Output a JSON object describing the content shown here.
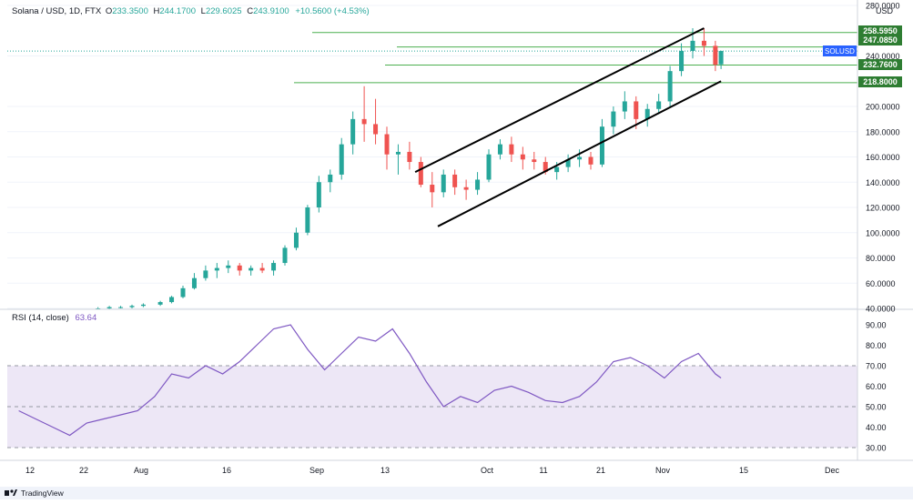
{
  "header": {
    "symbol_line": "Solana / USD, 1D, FTX",
    "ohlc": [
      {
        "label": "O",
        "value": "233.3500"
      },
      {
        "label": "H",
        "value": "244.1700"
      },
      {
        "label": "L",
        "value": "229.6025"
      },
      {
        "label": "C",
        "value": "243.9100"
      }
    ],
    "change": "+10.5600 (+4.53%)"
  },
  "price_axis": {
    "unit": "USD",
    "ticks": [
      "280.0000",
      "240.0000",
      "200.0000",
      "180.0000",
      "160.0000",
      "140.0000",
      "120.0000",
      "100.0000",
      "80.0000",
      "60.0000",
      "40.0000"
    ],
    "ticks_values": [
      280,
      240,
      200,
      180,
      160,
      140,
      120,
      100,
      80,
      60,
      40
    ]
  },
  "level_labels": {
    "l1": "258.5950",
    "l2": "247.0850",
    "symbol_tag": "SOLUSD",
    "l3": "232.7600",
    "l4": "218.8000"
  },
  "rsi": {
    "label": "RSI (14, close)",
    "value": "63.64",
    "ticks": [
      "90.00",
      "80.00",
      "70.00",
      "60.00",
      "50.00",
      "40.00",
      "30.00"
    ],
    "ticks_values": [
      90,
      80,
      70,
      60,
      50,
      40,
      30
    ]
  },
  "time_axis": {
    "labels": [
      "12",
      "22",
      "Aug",
      "16",
      "Sep",
      "13",
      "Oct",
      "11",
      "21",
      "Nov",
      "15",
      "Dec"
    ]
  },
  "branding": {
    "name": "TradingView"
  },
  "colors": {
    "up": "#26a69a",
    "down": "#ef5350",
    "level_line": "#4caf50",
    "rsi_line": "#7e57c2",
    "rsi_band": "#ede7f6",
    "label_green": "#2e7d32",
    "tag_blue": "#2962ff"
  },
  "chart_data": [
    {
      "type": "candlestick",
      "symbol": "SOLUSD",
      "ylim": [
        40,
        280
      ],
      "horizontal_levels": [
        258.595,
        247.085,
        232.76,
        218.8
      ],
      "trendlines": [
        {
          "from": [
            "2021-09-18",
            148
          ],
          "to": [
            "2021-11-08",
            262
          ]
        },
        {
          "from": [
            "2021-09-22",
            105
          ],
          "to": [
            "2021-11-11",
            220
          ]
        }
      ],
      "ohlc": [
        {
          "date": "2021-07-24",
          "o": 40,
          "h": 41,
          "l": 39,
          "c": 40
        },
        {
          "date": "2021-07-26",
          "o": 40,
          "h": 42,
          "l": 39,
          "c": 41
        },
        {
          "date": "2021-07-28",
          "o": 41,
          "h": 42,
          "l": 40,
          "c": 41
        },
        {
          "date": "2021-07-30",
          "o": 41,
          "h": 43,
          "l": 40,
          "c": 42
        },
        {
          "date": "2021-08-01",
          "o": 42,
          "h": 44,
          "l": 41,
          "c": 43
        },
        {
          "date": "2021-08-04",
          "o": 43,
          "h": 46,
          "l": 42,
          "c": 45
        },
        {
          "date": "2021-08-06",
          "o": 45,
          "h": 50,
          "l": 44,
          "c": 49
        },
        {
          "date": "2021-08-08",
          "o": 49,
          "h": 58,
          "l": 48,
          "c": 56
        },
        {
          "date": "2021-08-10",
          "o": 56,
          "h": 68,
          "l": 55,
          "c": 64
        },
        {
          "date": "2021-08-12",
          "o": 64,
          "h": 74,
          "l": 62,
          "c": 70
        },
        {
          "date": "2021-08-14",
          "o": 70,
          "h": 76,
          "l": 64,
          "c": 72
        },
        {
          "date": "2021-08-16",
          "o": 72,
          "h": 78,
          "l": 68,
          "c": 74
        },
        {
          "date": "2021-08-18",
          "o": 74,
          "h": 76,
          "l": 66,
          "c": 70
        },
        {
          "date": "2021-08-20",
          "o": 70,
          "h": 74,
          "l": 66,
          "c": 72
        },
        {
          "date": "2021-08-22",
          "o": 72,
          "h": 76,
          "l": 68,
          "c": 70
        },
        {
          "date": "2021-08-24",
          "o": 70,
          "h": 78,
          "l": 66,
          "c": 76
        },
        {
          "date": "2021-08-26",
          "o": 76,
          "h": 90,
          "l": 74,
          "c": 88
        },
        {
          "date": "2021-08-28",
          "o": 88,
          "h": 104,
          "l": 86,
          "c": 100
        },
        {
          "date": "2021-08-30",
          "o": 100,
          "h": 122,
          "l": 98,
          "c": 120
        },
        {
          "date": "2021-09-01",
          "o": 120,
          "h": 145,
          "l": 116,
          "c": 140
        },
        {
          "date": "2021-09-03",
          "o": 140,
          "h": 150,
          "l": 132,
          "c": 146
        },
        {
          "date": "2021-09-05",
          "o": 146,
          "h": 175,
          "l": 142,
          "c": 170
        },
        {
          "date": "2021-09-07",
          "o": 170,
          "h": 196,
          "l": 162,
          "c": 190
        },
        {
          "date": "2021-09-09",
          "o": 190,
          "h": 216,
          "l": 172,
          "c": 186
        },
        {
          "date": "2021-09-11",
          "o": 186,
          "h": 206,
          "l": 170,
          "c": 178
        },
        {
          "date": "2021-09-13",
          "o": 178,
          "h": 184,
          "l": 150,
          "c": 162
        },
        {
          "date": "2021-09-15",
          "o": 162,
          "h": 170,
          "l": 146,
          "c": 164
        },
        {
          "date": "2021-09-17",
          "o": 164,
          "h": 172,
          "l": 150,
          "c": 156
        },
        {
          "date": "2021-09-19",
          "o": 156,
          "h": 160,
          "l": 136,
          "c": 138
        },
        {
          "date": "2021-09-21",
          "o": 138,
          "h": 148,
          "l": 120,
          "c": 132
        },
        {
          "date": "2021-09-23",
          "o": 132,
          "h": 150,
          "l": 128,
          "c": 146
        },
        {
          "date": "2021-09-25",
          "o": 146,
          "h": 150,
          "l": 130,
          "c": 136
        },
        {
          "date": "2021-09-27",
          "o": 136,
          "h": 142,
          "l": 126,
          "c": 134
        },
        {
          "date": "2021-09-29",
          "o": 134,
          "h": 148,
          "l": 130,
          "c": 142
        },
        {
          "date": "2021-10-01",
          "o": 142,
          "h": 166,
          "l": 140,
          "c": 162
        },
        {
          "date": "2021-10-03",
          "o": 162,
          "h": 174,
          "l": 158,
          "c": 170
        },
        {
          "date": "2021-10-05",
          "o": 170,
          "h": 176,
          "l": 156,
          "c": 162
        },
        {
          "date": "2021-10-07",
          "o": 162,
          "h": 168,
          "l": 150,
          "c": 158
        },
        {
          "date": "2021-10-09",
          "o": 158,
          "h": 164,
          "l": 150,
          "c": 156
        },
        {
          "date": "2021-10-11",
          "o": 156,
          "h": 160,
          "l": 146,
          "c": 148
        },
        {
          "date": "2021-10-13",
          "o": 148,
          "h": 156,
          "l": 142,
          "c": 152
        },
        {
          "date": "2021-10-15",
          "o": 152,
          "h": 162,
          "l": 148,
          "c": 158
        },
        {
          "date": "2021-10-17",
          "o": 158,
          "h": 166,
          "l": 152,
          "c": 160
        },
        {
          "date": "2021-10-19",
          "o": 160,
          "h": 164,
          "l": 150,
          "c": 154
        },
        {
          "date": "2021-10-21",
          "o": 154,
          "h": 190,
          "l": 152,
          "c": 184
        },
        {
          "date": "2021-10-23",
          "o": 184,
          "h": 200,
          "l": 178,
          "c": 196
        },
        {
          "date": "2021-10-25",
          "o": 196,
          "h": 212,
          "l": 190,
          "c": 204
        },
        {
          "date": "2021-10-27",
          "o": 204,
          "h": 208,
          "l": 182,
          "c": 190
        },
        {
          "date": "2021-10-29",
          "o": 190,
          "h": 202,
          "l": 184,
          "c": 198
        },
        {
          "date": "2021-10-31",
          "o": 198,
          "h": 210,
          "l": 194,
          "c": 204
        },
        {
          "date": "2021-11-02",
          "o": 204,
          "h": 232,
          "l": 200,
          "c": 228
        },
        {
          "date": "2021-11-04",
          "o": 228,
          "h": 250,
          "l": 224,
          "c": 244
        },
        {
          "date": "2021-11-06",
          "o": 244,
          "h": 262,
          "l": 238,
          "c": 252
        },
        {
          "date": "2021-11-08",
          "o": 252,
          "h": 262,
          "l": 240,
          "c": 248
        },
        {
          "date": "2021-11-10",
          "o": 248,
          "h": 252,
          "l": 228,
          "c": 233
        },
        {
          "date": "2021-11-11",
          "o": 233.35,
          "h": 244.17,
          "l": 229.6025,
          "c": 243.91
        }
      ]
    },
    {
      "type": "line",
      "name": "RSI (14, close)",
      "ylim": [
        25,
        95
      ],
      "bands": {
        "upper": 70,
        "middle": 50,
        "lower": 30
      },
      "x": [
        "2021-07-10",
        "2021-07-13",
        "2021-07-16",
        "2021-07-19",
        "2021-07-22",
        "2021-07-25",
        "2021-07-28",
        "2021-07-31",
        "2021-08-03",
        "2021-08-06",
        "2021-08-09",
        "2021-08-12",
        "2021-08-15",
        "2021-08-18",
        "2021-08-21",
        "2021-08-24",
        "2021-08-27",
        "2021-08-30",
        "2021-09-02",
        "2021-09-05",
        "2021-09-08",
        "2021-09-11",
        "2021-09-14",
        "2021-09-17",
        "2021-09-20",
        "2021-09-23",
        "2021-09-26",
        "2021-09-29",
        "2021-10-02",
        "2021-10-05",
        "2021-10-08",
        "2021-10-11",
        "2021-10-14",
        "2021-10-17",
        "2021-10-20",
        "2021-10-23",
        "2021-10-26",
        "2021-10-29",
        "2021-11-01",
        "2021-11-04",
        "2021-11-07",
        "2021-11-10",
        "2021-11-11"
      ],
      "y": [
        48,
        44,
        40,
        36,
        42,
        44,
        46,
        48,
        55,
        66,
        64,
        70,
        66,
        72,
        80,
        88,
        90,
        78,
        68,
        76,
        84,
        82,
        88,
        76,
        62,
        50,
        55,
        52,
        58,
        60,
        57,
        53,
        52,
        55,
        62,
        72,
        74,
        70,
        64,
        72,
        76,
        66,
        64
      ]
    }
  ]
}
